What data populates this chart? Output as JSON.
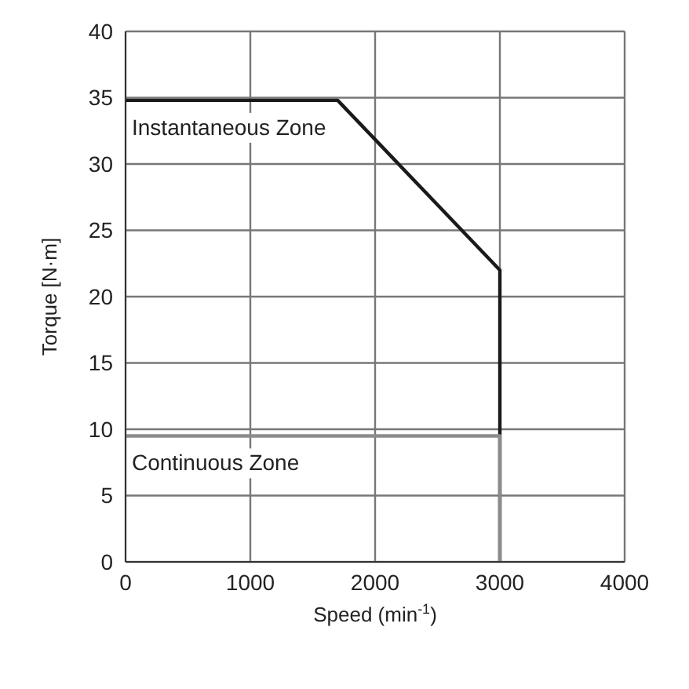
{
  "chart_data": {
    "type": "line",
    "xlabel": "Speed (min$^{-1}$)",
    "ylabel": "Torque [N·m]",
    "xlim": [
      0,
      4000
    ],
    "xticks": [
      0,
      1000,
      2000,
      3000,
      4000
    ],
    "ylim": [
      0,
      40
    ],
    "yticks": [
      0,
      5,
      10,
      15,
      20,
      25,
      30,
      35,
      40
    ],
    "grid": true,
    "marker": "none",
    "line_style": "solid",
    "series": [
      {
        "color": "#1a1a1a",
        "x": [
          0,
          1700,
          3000,
          3000
        ],
        "values": [
          34.8,
          34.8,
          22,
          0
        ]
      },
      {
        "color": "#8c8c8c",
        "x": [
          0,
          3000,
          3000
        ],
        "values": [
          9.5,
          9.5,
          0
        ]
      }
    ],
    "annotations": [
      "Instantaneous Zone",
      "Continuous Zone"
    ]
  }
}
